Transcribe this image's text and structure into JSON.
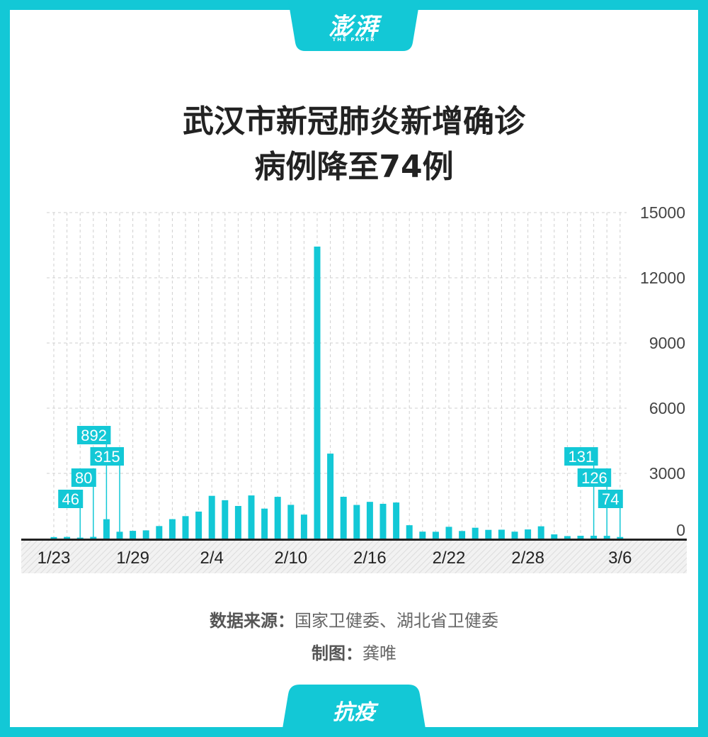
{
  "brand": {
    "logo": "澎湃",
    "logo_sub": "THE PAPER",
    "tag": "抗疫"
  },
  "colors": {
    "accent": "#13c8d6",
    "text": "#222222",
    "muted": "#666666"
  },
  "title_lines": [
    "武汉市新冠肺炎新增确诊",
    "病例降至74例"
  ],
  "source": {
    "label": "数据来源：",
    "text": "国家卫健委、湖北省卫健委"
  },
  "credit": {
    "label": "制图：",
    "text": "龚唯"
  },
  "chart_data": {
    "type": "bar",
    "title": "武汉市新冠肺炎新增确诊病例降至74例",
    "xlabel": "",
    "ylabel": "",
    "ylim": [
      0,
      15000
    ],
    "yticks": [
      0,
      3000,
      6000,
      9000,
      12000,
      15000
    ],
    "x_tick_labels": [
      "1/23",
      "1/29",
      "2/4",
      "2/10",
      "2/16",
      "2/22",
      "2/28",
      "3/6"
    ],
    "grid": true,
    "categories": [
      "1/23",
      "1/24",
      "1/25",
      "1/26",
      "1/27",
      "1/28",
      "1/29",
      "1/30",
      "1/31",
      "2/1",
      "2/2",
      "2/3",
      "2/4",
      "2/5",
      "2/6",
      "2/7",
      "2/8",
      "2/9",
      "2/10",
      "2/11",
      "2/12",
      "2/13",
      "2/14",
      "2/15",
      "2/16",
      "2/17",
      "2/18",
      "2/19",
      "2/20",
      "2/21",
      "2/22",
      "2/23",
      "2/24",
      "2/25",
      "2/26",
      "2/27",
      "2/28",
      "2/29",
      "3/1",
      "3/2",
      "3/3",
      "3/4",
      "3/5",
      "3/6"
    ],
    "values": [
      70,
      77,
      46,
      80,
      892,
      315,
      356,
      378,
      576,
      894,
      1033,
      1242,
      1967,
      1766,
      1501,
      1985,
      1379,
      1921,
      1552,
      1104,
      13436,
      3910,
      1923,
      1548,
      1690,
      1600,
      1660,
      615,
      319,
      314,
      541,
      348,
      499,
      401,
      409,
      318,
      421,
      565,
      193,
      114,
      129,
      131,
      126,
      74
    ],
    "data_labels": [
      {
        "category": "1/25",
        "value": "46"
      },
      {
        "category": "1/26",
        "value": "80"
      },
      {
        "category": "1/27",
        "value": "892"
      },
      {
        "category": "1/28",
        "value": "315"
      },
      {
        "category": "3/4",
        "value": "131"
      },
      {
        "category": "3/5",
        "value": "126"
      },
      {
        "category": "3/6",
        "value": "74"
      }
    ]
  }
}
